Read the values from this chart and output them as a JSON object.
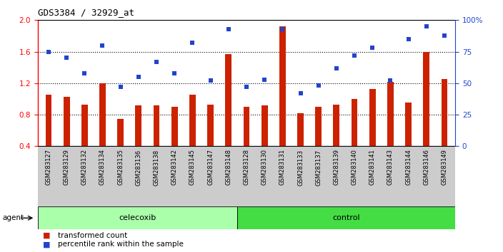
{
  "title": "GDS3384 / 32929_at",
  "categories": [
    "GSM283127",
    "GSM283129",
    "GSM283132",
    "GSM283134",
    "GSM283135",
    "GSM283136",
    "GSM283138",
    "GSM283142",
    "GSM283145",
    "GSM283147",
    "GSM283148",
    "GSM283128",
    "GSM283130",
    "GSM283131",
    "GSM283133",
    "GSM283137",
    "GSM283139",
    "GSM283140",
    "GSM283141",
    "GSM283143",
    "GSM283144",
    "GSM283146",
    "GSM283149"
  ],
  "bar_values": [
    1.05,
    1.03,
    0.93,
    1.2,
    0.75,
    0.92,
    0.92,
    0.9,
    1.05,
    0.93,
    1.57,
    0.9,
    0.92,
    1.92,
    0.82,
    0.9,
    0.93,
    1.0,
    1.13,
    1.22,
    0.95,
    1.6,
    1.25
  ],
  "percentile_values": [
    75,
    70,
    58,
    80,
    47,
    55,
    67,
    58,
    82,
    52,
    93,
    47,
    53,
    93,
    42,
    48,
    62,
    72,
    78,
    52,
    85,
    95,
    88
  ],
  "celecoxib_count": 11,
  "control_count": 12,
  "bar_color": "#cc2200",
  "percentile_color": "#2244cc",
  "ylim_left": [
    0.4,
    2.0
  ],
  "ylim_right": [
    0,
    100
  ],
  "yticks_left": [
    0.4,
    0.8,
    1.2,
    1.6,
    2.0
  ],
  "yticks_right": [
    0,
    25,
    50,
    75,
    100
  ],
  "dotted_lines": [
    0.8,
    1.2,
    1.6
  ],
  "agent_label": "agent",
  "celecoxib_label": "celecoxib",
  "control_label": "control",
  "legend_bar_label": "transformed count",
  "legend_pct_label": "percentile rank within the sample",
  "celecoxib_color": "#aaffaa",
  "control_color": "#44dd44",
  "xticklabel_bg": "#cccccc",
  "background_color": "#ffffff",
  "title_fontsize": 9,
  "bar_width": 0.35
}
